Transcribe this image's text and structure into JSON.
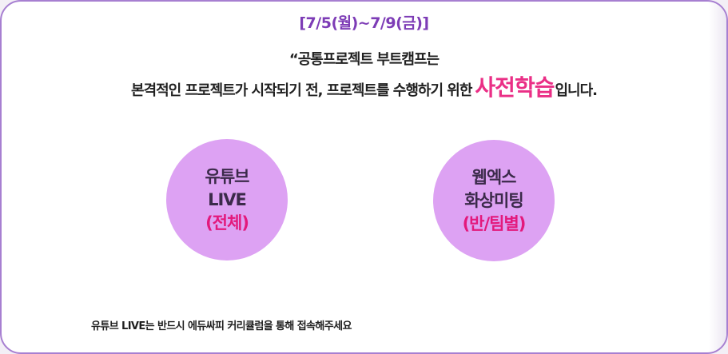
{
  "header": {
    "date_range": "[7/5(월)~7/9(금)]",
    "line1": "“공통프로젝트 부트캠프는",
    "line2_prefix": "본격적인 프로젝트가 시작되기 전, 프로젝트를 수행하기 위한",
    "line2_highlight": "사전학습",
    "line2_suffix": "입니다."
  },
  "circles": [
    {
      "line1": "유튜브",
      "line2": "LIVE",
      "line3": "(전체)"
    },
    {
      "line1": "웹엑스",
      "line2": "화상미팅",
      "line3": "(반/팀별)"
    }
  ],
  "footer_note": "유튜브 LIVE는 반드시 에듀싸피 커리큘럼을 통해 접속해주세요",
  "colors": {
    "accent_purple": "#7d3cb6",
    "highlight_pink": "#ea2f86",
    "circle_fill": "#dda2f3",
    "border": "#a77fd1"
  }
}
